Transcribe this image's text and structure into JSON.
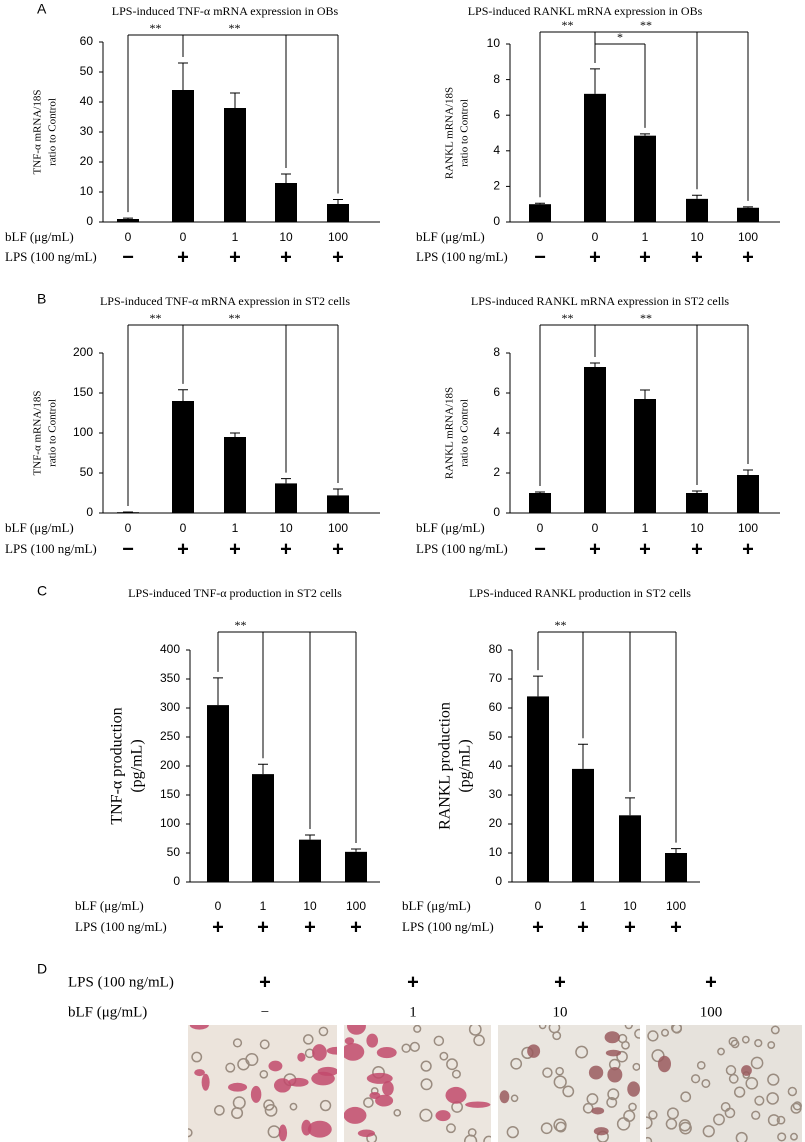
{
  "panel_labels": [
    "A",
    "B",
    "C",
    "D"
  ],
  "chart_data": [
    {
      "type": "bar",
      "title": "LPS-induced TNF-α mRNA expression in OBs",
      "ylabel": [
        "TNF-α mRNA/18S",
        "ratio to Control"
      ],
      "categories": [
        "0",
        "0",
        "1",
        "10",
        "100"
      ],
      "category_label": "bLF (μg/mL)",
      "lps_label": "LPS (100 ng/mL)",
      "lps": [
        "−",
        "+",
        "+",
        "+",
        "+"
      ],
      "values": [
        1,
        44,
        38,
        13,
        6
      ],
      "errors": [
        0.3,
        9,
        5,
        3,
        1.5
      ],
      "color": "#000000",
      "ylim": [
        0,
        60
      ],
      "yticks": [
        0,
        10,
        20,
        30,
        40,
        50,
        60
      ],
      "annotations": [
        "**",
        "**"
      ]
    },
    {
      "type": "bar",
      "title": "LPS-induced RANKL mRNA expression in OBs",
      "ylabel": [
        "RANKL mRNA/18S",
        "ratio to Control"
      ],
      "categories": [
        "0",
        "0",
        "1",
        "10",
        "100"
      ],
      "category_label": "bLF (μg/mL)",
      "lps_label": "LPS (100 ng/mL)",
      "lps": [
        "−",
        "+",
        "+",
        "+",
        "+"
      ],
      "values": [
        1,
        7.2,
        4.85,
        1.3,
        0.8
      ],
      "errors": [
        0.05,
        1.4,
        0.1,
        0.2,
        0.05
      ],
      "color": "#000000",
      "ylim": [
        0,
        10
      ],
      "yticks": [
        0,
        2,
        4,
        6,
        8,
        10
      ],
      "annotations": [
        "**",
        "*",
        "**"
      ]
    },
    {
      "type": "bar",
      "title": "LPS-induced TNF-α mRNA expression in ST2 cells",
      "ylabel": [
        "TNF-α mRNA/18S",
        "ratio to Control"
      ],
      "categories": [
        "0",
        "0",
        "1",
        "10",
        "100"
      ],
      "category_label": "bLF (μg/mL)",
      "lps_label": "LPS (100 ng/mL)",
      "lps": [
        "−",
        "+",
        "+",
        "+",
        "+"
      ],
      "values": [
        1,
        140,
        95,
        37,
        22
      ],
      "errors": [
        0.2,
        14,
        5,
        6,
        8
      ],
      "color": "#000000",
      "ylim": [
        0,
        200
      ],
      "yticks": [
        0,
        50,
        100,
        150,
        200
      ],
      "annotations": [
        "**",
        "**"
      ]
    },
    {
      "type": "bar",
      "title": "LPS-induced RANKL mRNA expression in ST2 cells",
      "ylabel": [
        "RANKL mRNA/18S",
        "ratio to Control"
      ],
      "categories": [
        "0",
        "0",
        "1",
        "10",
        "100"
      ],
      "category_label": "bLF (μg/mL)",
      "lps_label": "LPS (100 ng/mL)",
      "lps": [
        "−",
        "+",
        "+",
        "+",
        "+"
      ],
      "values": [
        1,
        7.3,
        5.7,
        1,
        1.9
      ],
      "errors": [
        0.05,
        0.2,
        0.45,
        0.1,
        0.25
      ],
      "color": "#000000",
      "ylim": [
        0,
        8
      ],
      "yticks": [
        0,
        2,
        4,
        6,
        8
      ],
      "annotations": [
        "**",
        "**"
      ]
    },
    {
      "type": "bar",
      "title": "LPS-induced TNF-α production in ST2 cells",
      "ylabel": [
        "TNF-α production",
        "(pg/mL)"
      ],
      "categories": [
        "0",
        "1",
        "10",
        "100"
      ],
      "category_label": "bLF (μg/mL)",
      "lps_label": "LPS (100 ng/mL)",
      "lps": [
        "+",
        "+",
        "+",
        "+"
      ],
      "values": [
        305,
        186,
        73,
        52
      ],
      "errors": [
        47,
        17,
        8,
        5
      ],
      "color": "#000000",
      "ylim": [
        0,
        400
      ],
      "yticks": [
        0,
        50,
        100,
        150,
        200,
        250,
        300,
        350,
        400
      ],
      "annotations": [
        "**"
      ]
    },
    {
      "type": "bar",
      "title": "LPS-induced RANKL production in ST2 cells",
      "ylabel": [
        "RANKL production",
        "(pg/mL)"
      ],
      "categories": [
        "0",
        "1",
        "10",
        "100"
      ],
      "category_label": "bLF (μg/mL)",
      "lps_label": "LPS (100 ng/mL)",
      "lps": [
        "+",
        "+",
        "+",
        "+"
      ],
      "values": [
        64,
        39,
        23,
        10
      ],
      "errors": [
        7,
        8.5,
        6,
        1.5
      ],
      "color": "#000000",
      "ylim": [
        0,
        80
      ],
      "yticks": [
        0,
        10,
        20,
        30,
        40,
        50,
        60,
        70,
        80
      ],
      "annotations": [
        "**"
      ]
    }
  ],
  "panel_d": {
    "lps_label": "LPS (100 ng/mL)",
    "blf_label": "bLF (μg/mL)",
    "lps": [
      "+",
      "+",
      "+",
      "+"
    ],
    "blf": [
      "−",
      "1",
      "10",
      "100"
    ]
  }
}
